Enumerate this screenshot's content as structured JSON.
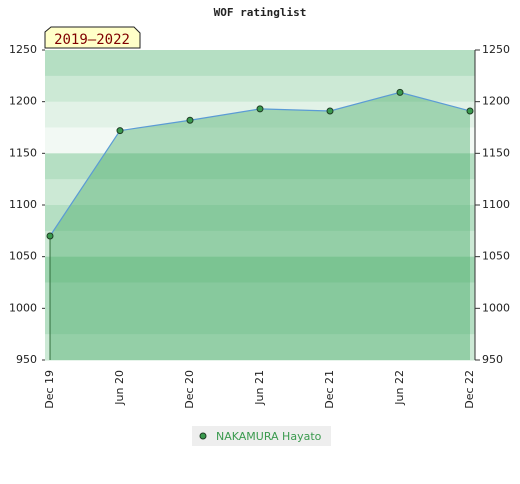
{
  "chart_data": {
    "type": "area",
    "title": "WOF ratinglist",
    "label": "2019–2022",
    "categories": [
      "Dec 19",
      "Jun 20",
      "Dec 20",
      "Jun 21",
      "Dec 21",
      "Jun 22",
      "Dec 22"
    ],
    "series": [
      {
        "name": "NAKAMURA Hayato",
        "color": "#3a9a4e",
        "values": [
          1070,
          1172,
          1182,
          1193,
          1191,
          1209,
          1191
        ]
      }
    ],
    "ylim": [
      950,
      1250
    ],
    "yticks": [
      950,
      1000,
      1050,
      1100,
      1150,
      1200,
      1250
    ],
    "y2lim": [
      950,
      1250
    ],
    "y2ticks": [
      950,
      1000,
      1050,
      1100,
      1150,
      1200,
      1250
    ]
  }
}
